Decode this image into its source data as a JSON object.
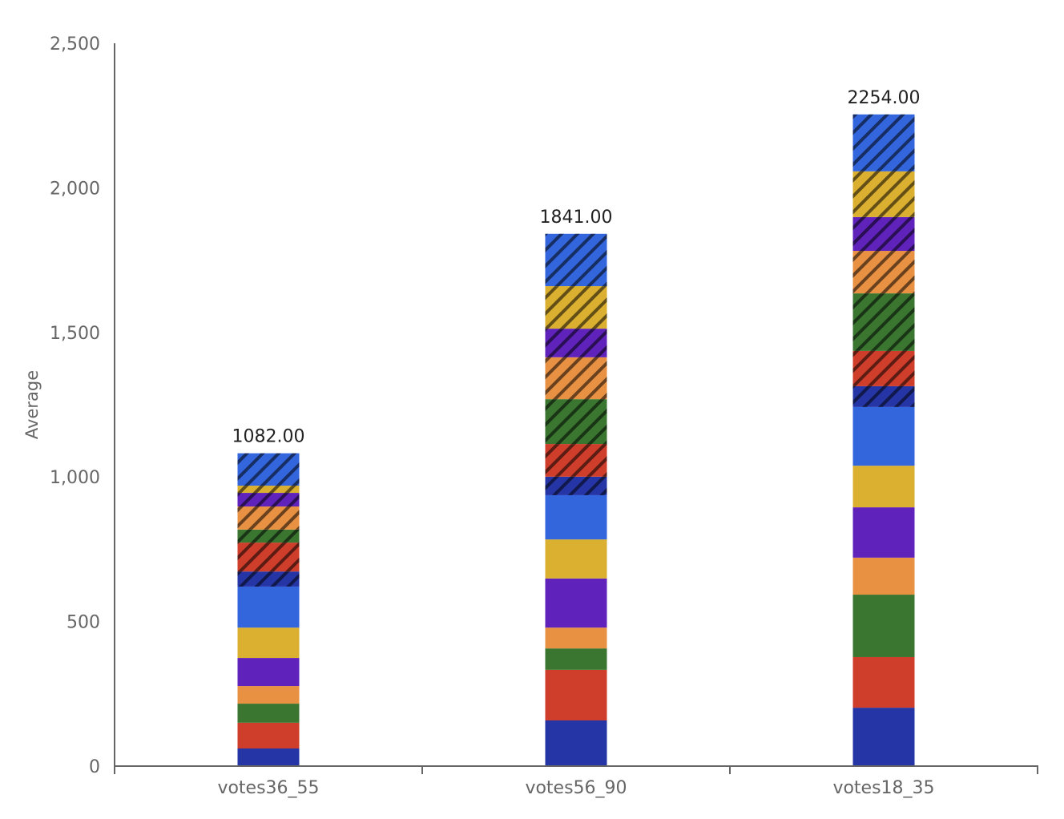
{
  "chart_data": {
    "type": "bar",
    "stacked": true,
    "title": "",
    "xlabel": "",
    "ylabel": "Average",
    "ylim": [
      0,
      2500
    ],
    "yticks": [
      0,
      500,
      1000,
      1500,
      2000,
      2500
    ],
    "ytick_labels": [
      "0",
      "500",
      "1,000",
      "1,500",
      "2,000",
      "2,500"
    ],
    "grid": false,
    "legend": "none",
    "categories": [
      "votes36_55",
      "votes56_90",
      "votes18_35"
    ],
    "totals": [
      1082,
      1841,
      2254
    ],
    "total_labels": [
      "1082.00",
      "1841.00",
      "2254.00"
    ],
    "series": [
      {
        "name": "navy",
        "color": "#2535a6",
        "hatched": false,
        "values": [
          61,
          158,
          202
        ]
      },
      {
        "name": "red",
        "color": "#cf3d2b",
        "hatched": false,
        "values": [
          89,
          175,
          175
        ]
      },
      {
        "name": "green",
        "color": "#3a7630",
        "hatched": false,
        "values": [
          66,
          74,
          216
        ]
      },
      {
        "name": "orange",
        "color": "#e99143",
        "hatched": false,
        "values": [
          61,
          72,
          128
        ]
      },
      {
        "name": "purple",
        "color": "#5f22bb",
        "hatched": false,
        "values": [
          97,
          170,
          174
        ]
      },
      {
        "name": "yellow",
        "color": "#dbb030",
        "hatched": false,
        "values": [
          105,
          135,
          144
        ]
      },
      {
        "name": "blue",
        "color": "#3366dd",
        "hatched": false,
        "values": [
          142,
          153,
          203
        ]
      },
      {
        "name": "navy-hatched",
        "color": "#2535a6",
        "hatched": true,
        "values": [
          52,
          64,
          72
        ]
      },
      {
        "name": "red-hatched",
        "color": "#cf3d2b",
        "hatched": true,
        "values": [
          100,
          113,
          122
        ]
      },
      {
        "name": "green-hatched",
        "color": "#3a7630",
        "hatched": true,
        "values": [
          45,
          155,
          199
        ]
      },
      {
        "name": "orange-hatched",
        "color": "#e99143",
        "hatched": true,
        "values": [
          80,
          145,
          147
        ]
      },
      {
        "name": "purple-hatched",
        "color": "#5f22bb",
        "hatched": true,
        "values": [
          47,
          99,
          117
        ]
      },
      {
        "name": "yellow-hatched",
        "color": "#dbb030",
        "hatched": true,
        "values": [
          25,
          147,
          158
        ]
      },
      {
        "name": "blue-hatched",
        "color": "#3366dd",
        "hatched": true,
        "values": [
          112,
          181,
          197
        ]
      }
    ]
  }
}
